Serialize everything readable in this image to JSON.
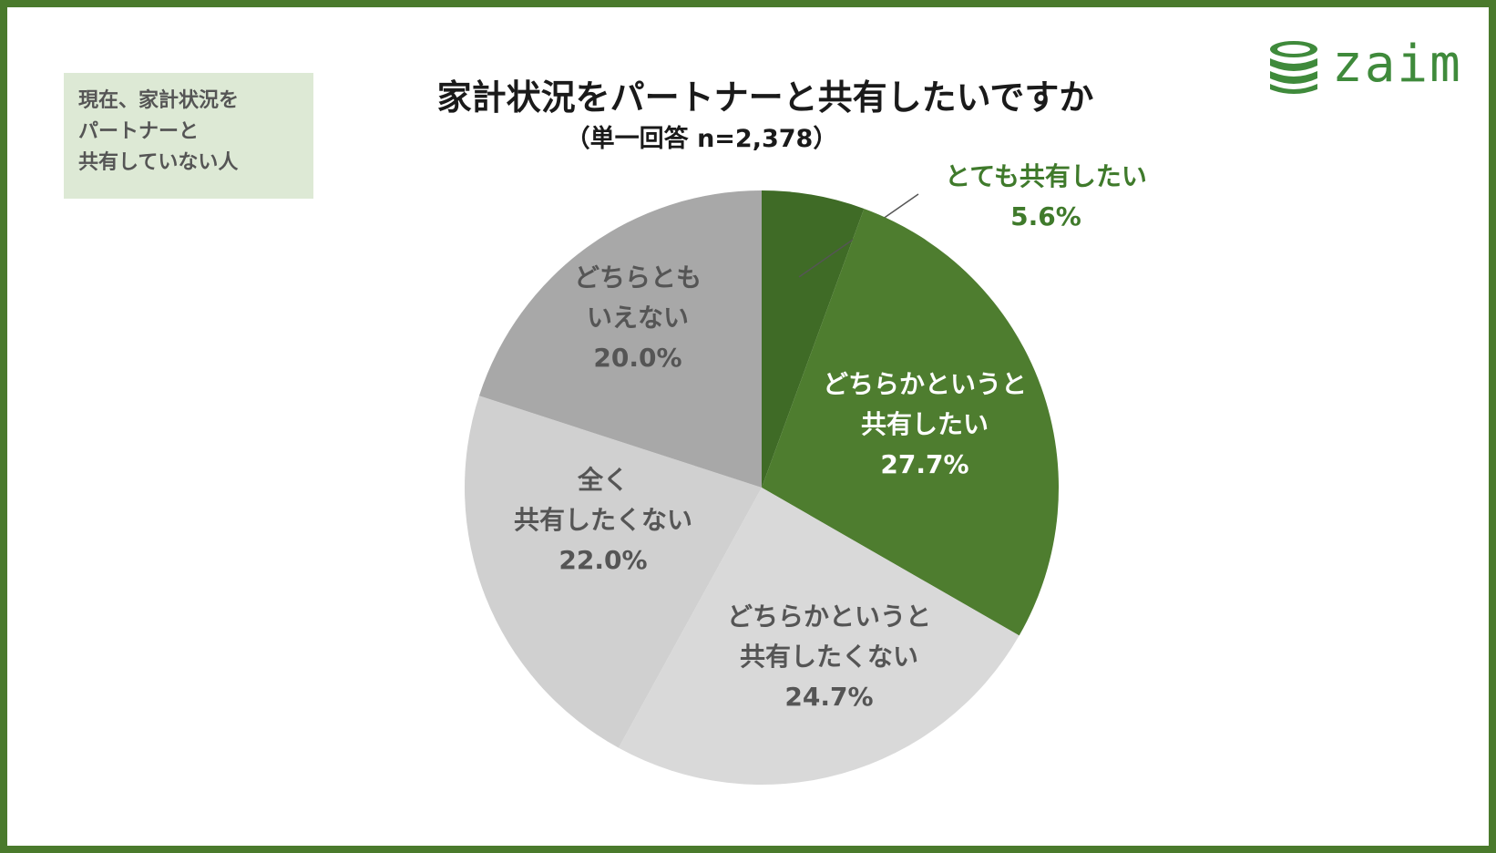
{
  "note": {
    "lines": [
      "現在、家計状況を",
      "パートナーと",
      "共有していない人"
    ]
  },
  "title": "家計状況をパートナーと共有したいですか",
  "subtitle": "（単一回答 n=2,378）",
  "logo": {
    "text": "zaim",
    "icon": "coin-stack-icon",
    "color": "#3f8a3b"
  },
  "chart_data": {
    "type": "pie",
    "start": "top",
    "direction": "clockwise",
    "slices": [
      {
        "label_lines": [
          "とても共有したい"
        ],
        "value": 5.6,
        "value_label": "5.6%",
        "color": "#3f6b26",
        "label_color": "#3f7a2b",
        "label_outside": true
      },
      {
        "label_lines": [
          "どちらかというと",
          "共有したい"
        ],
        "value": 27.7,
        "value_label": "27.7%",
        "color": "#4e7d2f",
        "label_color": "#ffffff"
      },
      {
        "label_lines": [
          "どちらかというと",
          "共有したくない"
        ],
        "value": 24.7,
        "value_label": "24.7%",
        "color": "#d9d9d9",
        "label_color": "#555555"
      },
      {
        "label_lines": [
          "全く",
          "共有したくない"
        ],
        "value": 22.0,
        "value_label": "22.0%",
        "color": "#d0d0d0",
        "label_color": "#555555"
      },
      {
        "label_lines": [
          "どちらとも",
          "いえない"
        ],
        "value": 20.0,
        "value_label": "20.0%",
        "color": "#a8a8a8",
        "label_color": "#555555"
      }
    ]
  }
}
